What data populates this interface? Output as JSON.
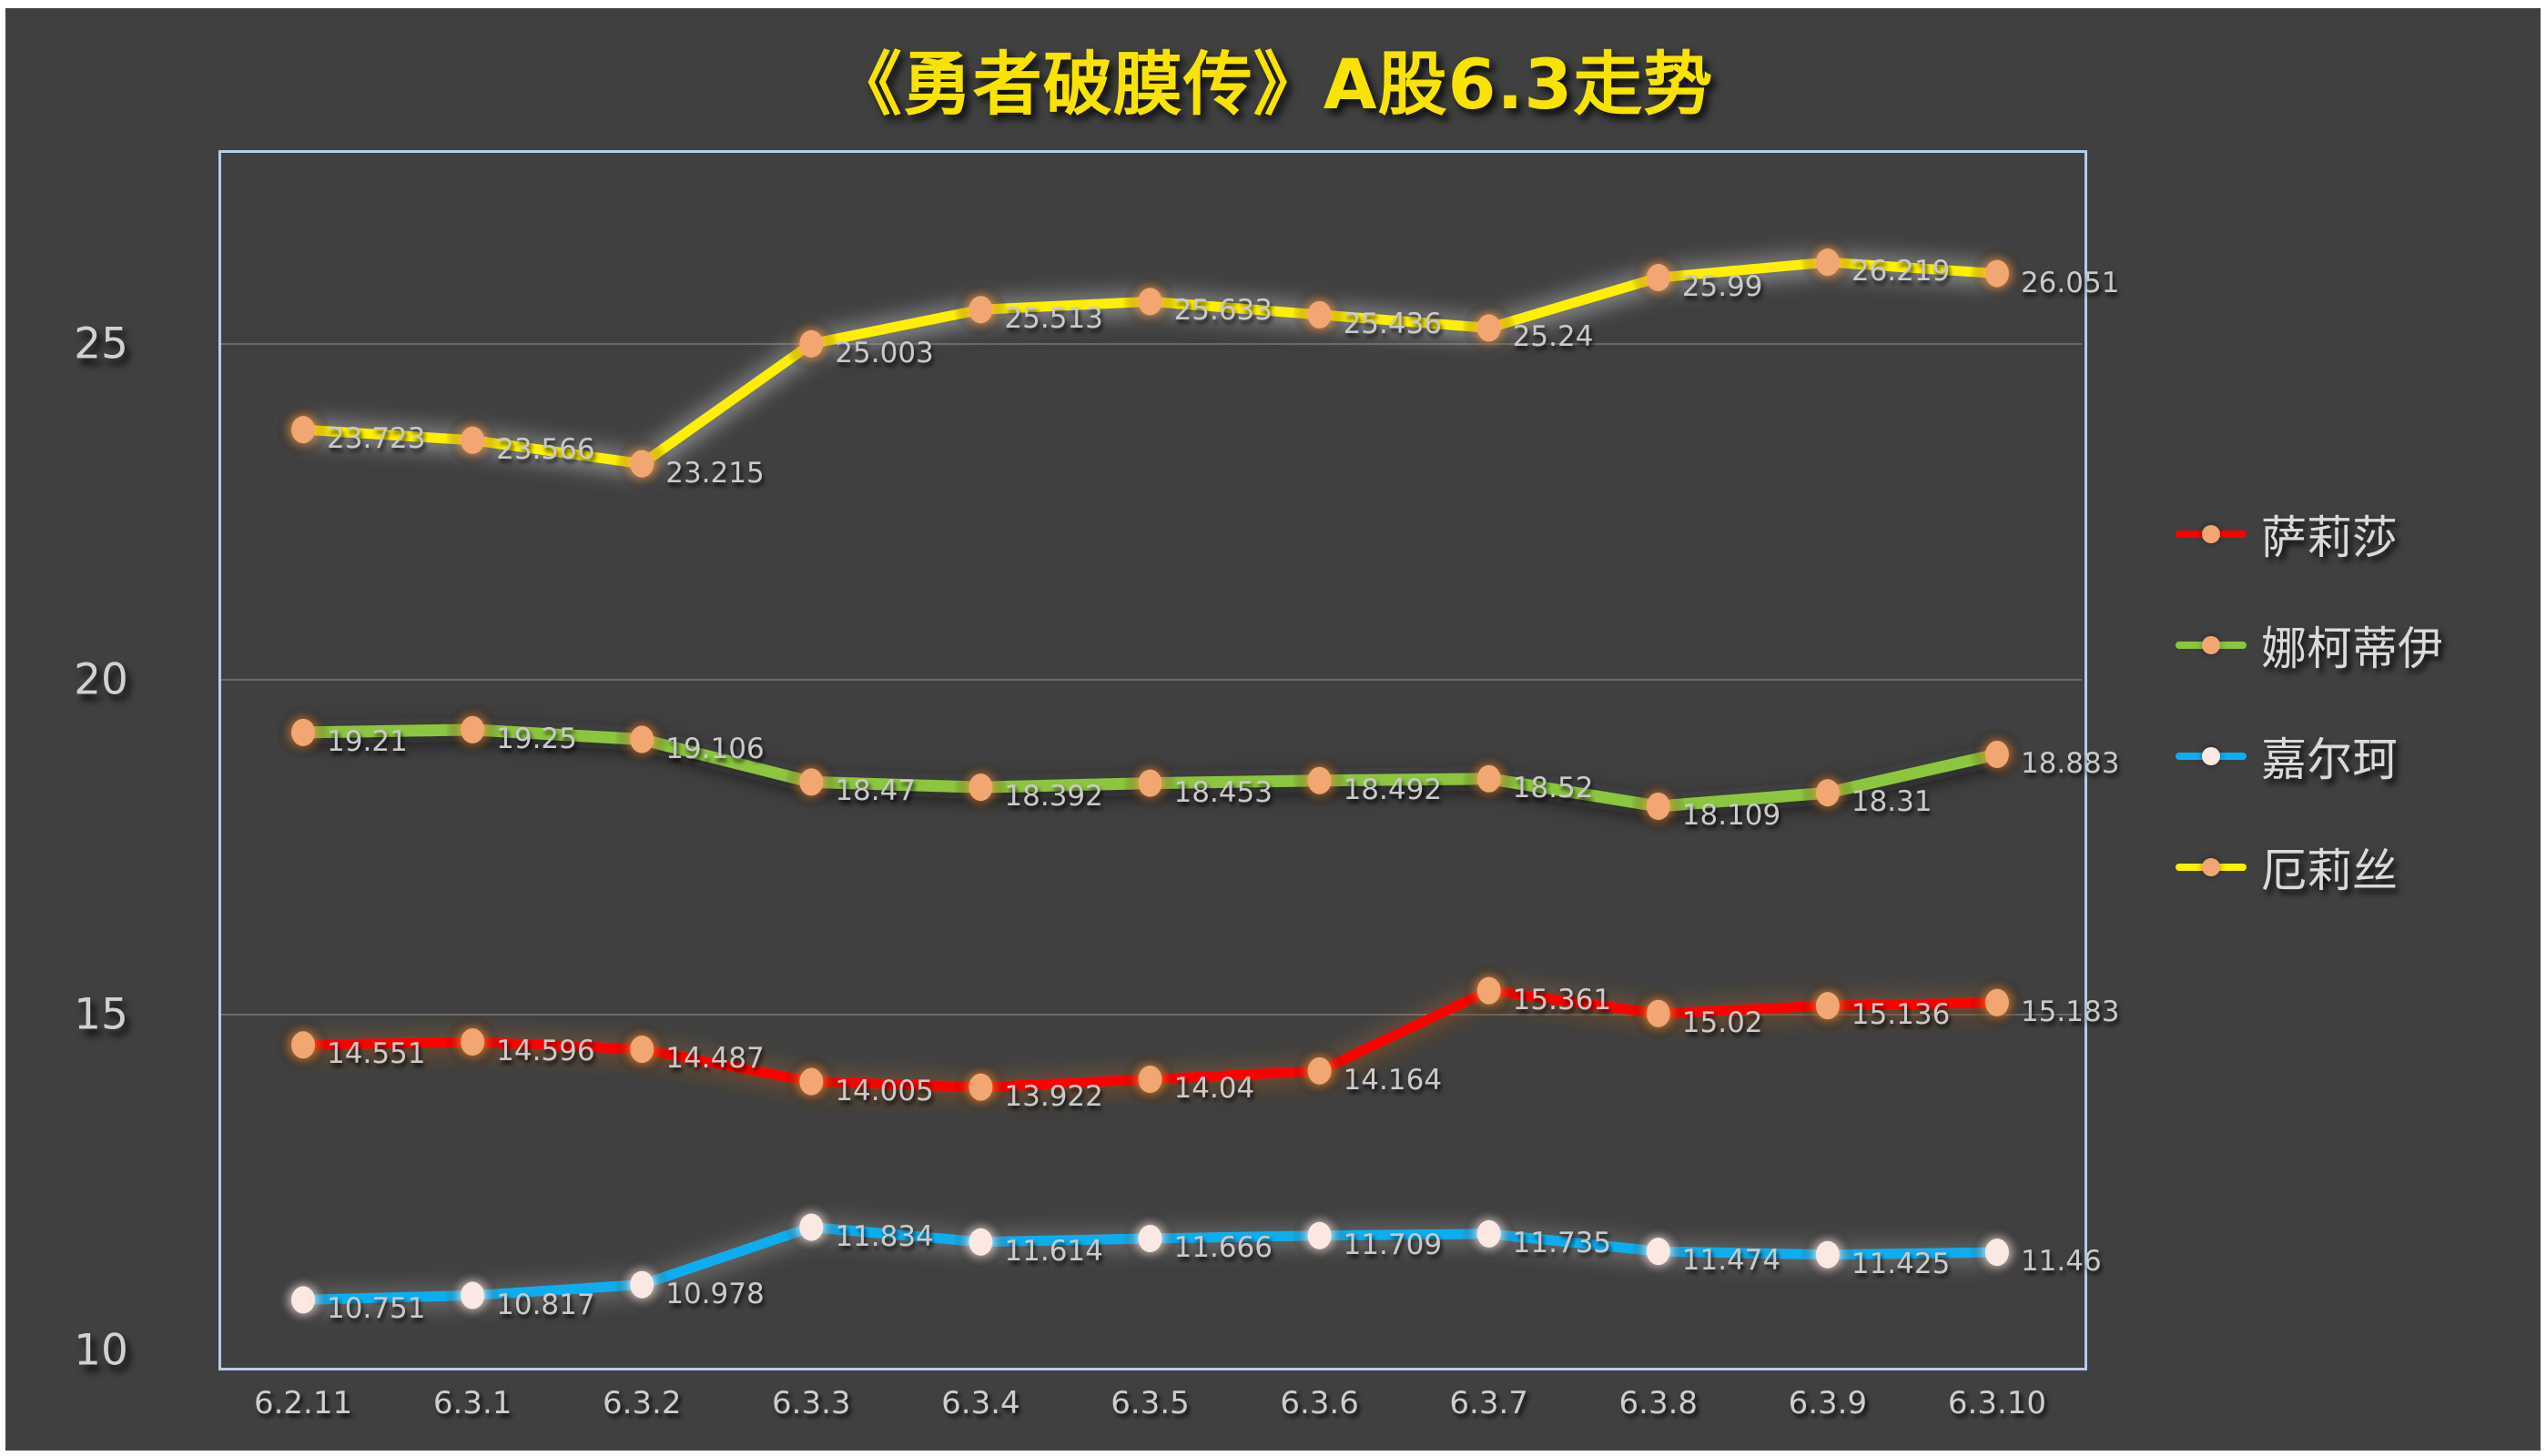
{
  "chart_data": {
    "type": "line",
    "title": "《勇者破膜传》A股6.3走势",
    "title_color": "#F9E300",
    "categories": [
      "6.2.11",
      "6.3.1",
      "6.3.2",
      "6.3.3",
      "6.3.4",
      "6.3.5",
      "6.3.6",
      "6.3.7",
      "6.3.8",
      "6.3.9",
      "6.3.10"
    ],
    "series": [
      {
        "name": "萨莉莎",
        "color": "#FE0000",
        "marker_color": "#F2A672",
        "halo_color": "rgba(232,130,45,0.85)",
        "glow_color": "rgba(235,140,60,0.45)",
        "values": [
          14.551,
          14.596,
          14.487,
          14.005,
          13.922,
          14.04,
          14.164,
          15.361,
          15.02,
          15.136,
          15.183
        ]
      },
      {
        "name": "娜柯蒂伊",
        "color": "#8CC63F",
        "marker_color": "#F2A672",
        "halo_color": "rgba(232,130,45,0.8)",
        "glow_color": "rgba(40,40,40,0.3)",
        "values": [
          19.21,
          19.25,
          19.106,
          18.47,
          18.392,
          18.453,
          18.492,
          18.52,
          18.109,
          18.31,
          18.883
        ]
      },
      {
        "name": "嘉尔珂",
        "color": "#0FAEEF",
        "marker_color": "#FCE8E2",
        "halo_color": "rgba(255,235,228,0.85)",
        "glow_color": "rgba(255,255,255,0.35)",
        "values": [
          10.751,
          10.817,
          10.978,
          11.834,
          11.614,
          11.666,
          11.709,
          11.735,
          11.474,
          11.425,
          11.46
        ]
      },
      {
        "name": "厄莉丝",
        "color": "#FEF000",
        "marker_color": "#F2A672",
        "halo_color": "rgba(235,140,50,0.85)",
        "glow_color": "rgba(255,255,255,0.7)",
        "values": [
          23.723,
          23.566,
          23.215,
          25.003,
          25.513,
          25.633,
          25.436,
          25.24,
          25.99,
          26.219,
          26.051
        ]
      }
    ],
    "y_ticks": [
      10,
      15,
      20,
      25
    ],
    "grid_values": [
      15,
      20,
      25
    ],
    "ylim": [
      9.78,
      27.89
    ],
    "xlabel": "",
    "ylabel": "",
    "legend_position": "right",
    "colors": {
      "background": "#404040",
      "frame": "#FFFFFF",
      "plot_border": "#B4CDE8",
      "gridline": "rgba(217,217,217,0.28)",
      "tick_text": "#D2D0D0",
      "label_text": "#CBC9C9"
    }
  }
}
